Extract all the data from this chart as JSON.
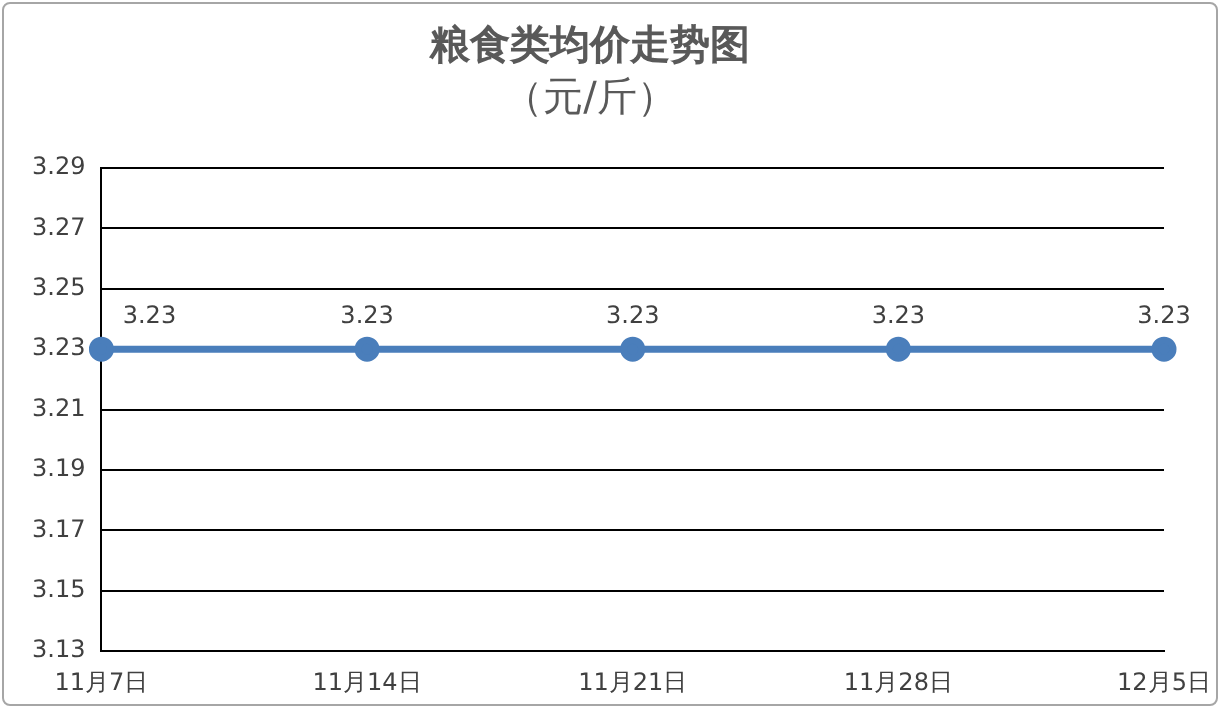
{
  "chart_data": {
    "type": "line",
    "title": "粮食类均价走势图",
    "subtitle": "（元/斤）",
    "categories": [
      "11月7日",
      "11月14日",
      "11月21日",
      "11月28日",
      "12月5日"
    ],
    "series": [
      {
        "color": "#4a7ebb",
        "values": [
          3.23,
          3.23,
          3.23,
          3.23,
          3.23
        ]
      }
    ],
    "ylim": [
      3.13,
      3.29
    ],
    "yticks": [
      3.13,
      3.15,
      3.17,
      3.19,
      3.21,
      3.23,
      3.25,
      3.27,
      3.29
    ],
    "grid": "y",
    "legend": false,
    "marker": "circle",
    "line_style": "solid",
    "data_labels": true
  }
}
